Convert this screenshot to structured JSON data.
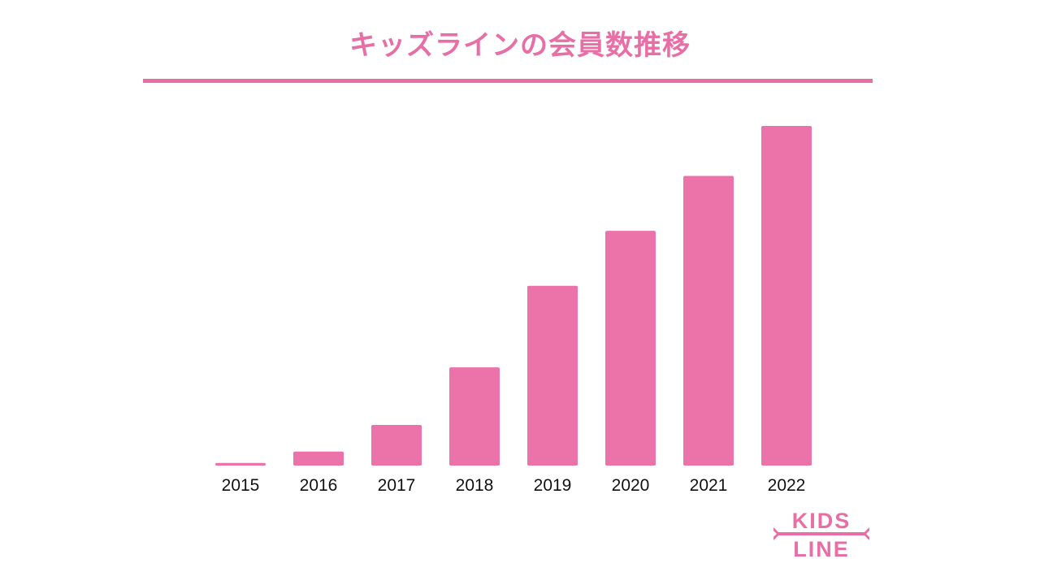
{
  "colors": {
    "accent": "#e86ea6",
    "bar": "#ec72aa",
    "text": "#111111"
  },
  "logo": {
    "line1": "KIDS",
    "line2": "LINE"
  },
  "chart_data": {
    "type": "bar",
    "title": "キッズラインの会員数推移",
    "xlabel": "",
    "ylabel": "",
    "categories": [
      "2015",
      "2016",
      "2017",
      "2018",
      "2019",
      "2020",
      "2021",
      "2022"
    ],
    "values": [
      0.8,
      4.2,
      12.2,
      29.5,
      54.0,
      70.5,
      87.0,
      102.0
    ],
    "ylim": [
      0,
      102
    ],
    "grid": false,
    "legend": "none"
  }
}
